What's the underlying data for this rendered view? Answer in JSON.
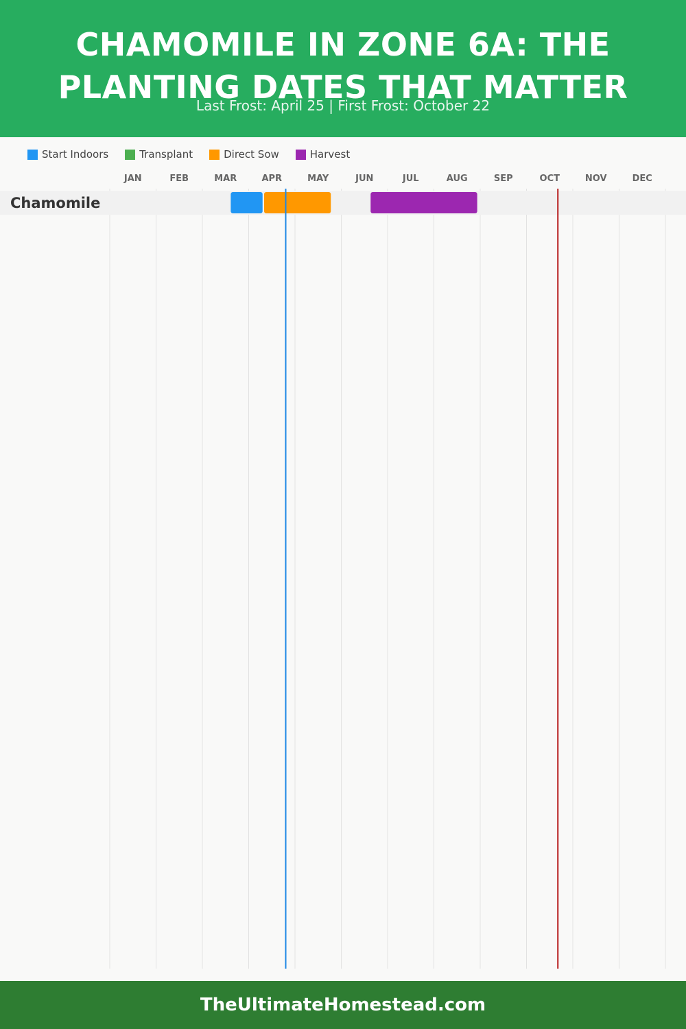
{
  "header": {
    "title": "CHAMOMILE IN ZONE 6A: THE PLANTING DATES THAT MATTER",
    "subtitle": "Last Frost: April 25 | First Frost: October 22"
  },
  "legend": [
    {
      "label": "Start Indoors",
      "color": "#2196f3"
    },
    {
      "label": "Transplant",
      "color": "#4caf50"
    },
    {
      "label": "Direct Sow",
      "color": "#ff9800"
    },
    {
      "label": "Harvest",
      "color": "#9c27b0"
    }
  ],
  "chart_data": {
    "type": "gantt",
    "months": [
      "JAN",
      "FEB",
      "MAR",
      "APR",
      "MAY",
      "JUN",
      "JUL",
      "AUG",
      "SEP",
      "OCT",
      "NOV",
      "DEC"
    ],
    "markers": [
      {
        "name": "Last Frost",
        "date": "April 25",
        "month": 4,
        "day": 25,
        "color": "#1e88e5"
      },
      {
        "name": "First Frost",
        "date": "October 22",
        "month": 10,
        "day": 22,
        "color": "#b71c1c"
      }
    ],
    "crops": [
      {
        "name": "Chamomile",
        "activities": [
          {
            "type": "Start Indoors",
            "start": {
              "month": 3,
              "day": 20
            },
            "end": {
              "month": 4,
              "day": 10
            },
            "color": "#2196f3"
          },
          {
            "type": "Direct Sow",
            "start": {
              "month": 4,
              "day": 11
            },
            "end": {
              "month": 5,
              "day": 25
            },
            "color": "#ff9800"
          },
          {
            "type": "Harvest",
            "start": {
              "month": 6,
              "day": 20
            },
            "end": {
              "month": 8,
              "day": 30
            },
            "color": "#9c27b0"
          }
        ]
      }
    ]
  },
  "footer": {
    "site": "TheUltimateHomestead.com"
  }
}
